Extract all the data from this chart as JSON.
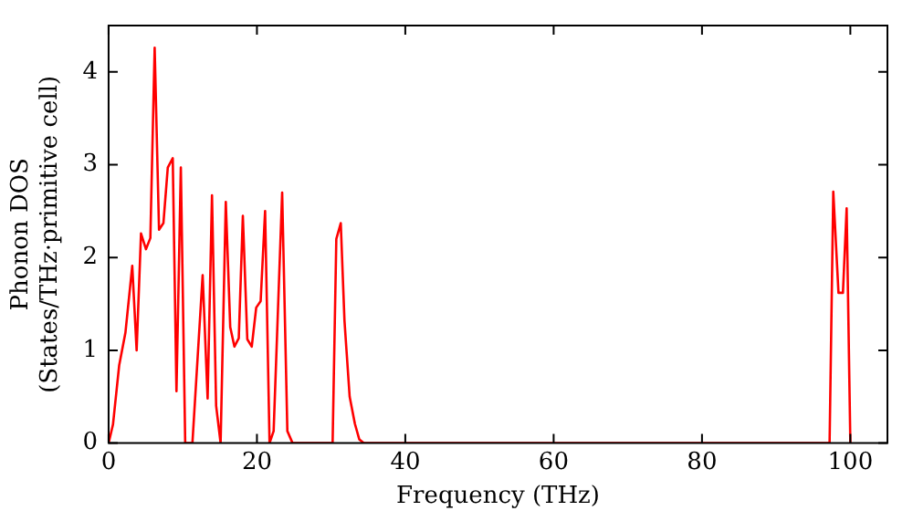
{
  "chart_data": {
    "type": "line",
    "xlabel": "Frequency (THz)",
    "ylabel": "Phonon DOS\n(States/THz·primitive cell)",
    "xlim": [
      0,
      105
    ],
    "ylim": [
      0,
      4.5
    ],
    "xticks": [
      0,
      20,
      40,
      60,
      80,
      100
    ],
    "yticks": [
      0,
      1,
      2,
      3,
      4
    ],
    "grid": false,
    "legend": false,
    "marker": "none",
    "line_style": "solid",
    "series": [
      {
        "color": "#ff0000",
        "x": [
          0,
          0.59,
          1.43,
          2.27,
          3.19,
          3.78,
          4.37,
          5.04,
          5.63,
          6.21,
          6.8,
          7.39,
          7.98,
          8.65,
          9.15,
          9.74,
          10.33,
          11.3,
          12.68,
          13.35,
          13.94,
          14.5,
          15.1,
          15.8,
          16.4,
          16.96,
          17.55,
          18.1,
          18.7,
          19.3,
          19.9,
          20.5,
          21.1,
          21.7,
          22.25,
          23.4,
          24.1,
          24.8,
          30.2,
          30.7,
          31.3,
          31.8,
          32.5,
          33.2,
          33.8,
          34.4,
          97.2,
          97.7,
          98.4,
          99.0,
          99.5,
          100.0
        ],
        "values": [
          0,
          0.2,
          0.84,
          1.19,
          1.91,
          1.0,
          2.26,
          2.09,
          2.21,
          4.26,
          2.3,
          2.37,
          2.97,
          3.07,
          0.56,
          2.97,
          0,
          0,
          1.81,
          0.48,
          2.67,
          0.4,
          0,
          2.6,
          1.25,
          1.04,
          1.13,
          2.45,
          1.12,
          1.04,
          1.46,
          1.53,
          2.5,
          0,
          0.13,
          2.7,
          0.13,
          0,
          0,
          2.2,
          2.37,
          1.32,
          0.5,
          0.21,
          0.04,
          0,
          0,
          2.71,
          1.62,
          1.62,
          2.53,
          0
        ]
      }
    ]
  }
}
